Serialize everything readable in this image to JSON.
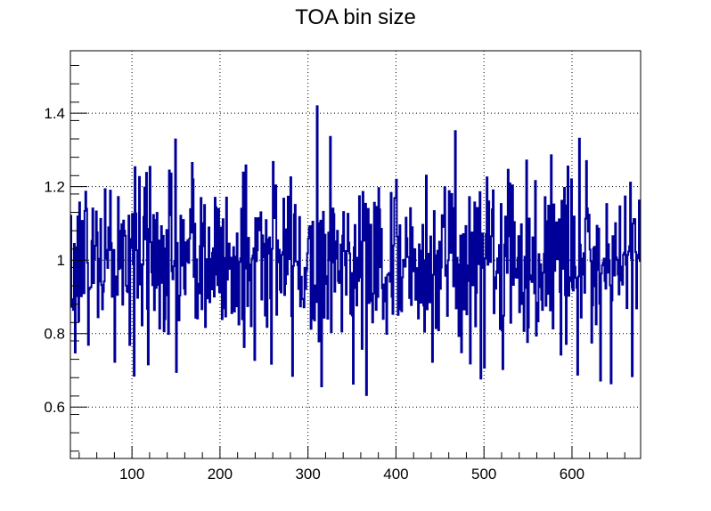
{
  "chart_data": {
    "type": "line",
    "title": "TOA bin size",
    "xlabel": "",
    "ylabel": "",
    "xlim": [
      30,
      678
    ],
    "ylim": [
      0.46,
      1.57
    ],
    "grid": true,
    "x_ticks": [
      "100",
      "200",
      "300",
      "400",
      "500",
      "600"
    ],
    "x_tick_values": [
      100,
      200,
      300,
      400,
      500,
      600
    ],
    "y_ticks": [
      "0.6",
      "0.8",
      "1",
      "1.2",
      "1.4"
    ],
    "y_tick_values": [
      0.6,
      0.8,
      1.0,
      1.2,
      1.4
    ],
    "series": [
      {
        "color": "#000099",
        "x_start": 30,
        "x_end": 678,
        "mean": 1.0,
        "spread": 0.13,
        "min_approx": 0.51,
        "max_approx": 1.45
      }
    ]
  }
}
